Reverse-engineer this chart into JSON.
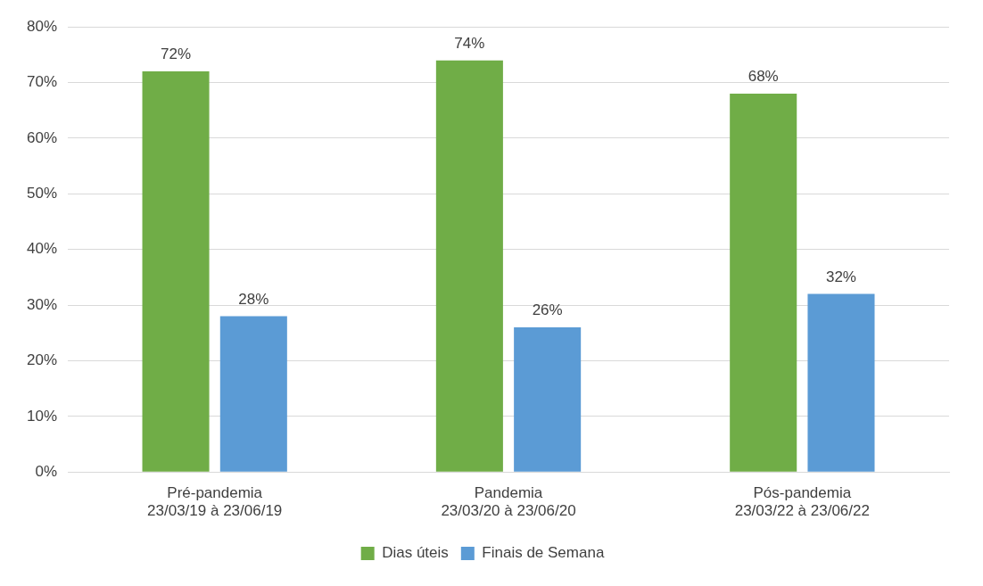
{
  "chart_data": {
    "type": "bar",
    "categories": [
      "Pré-pandemia\n23/03/19 à 23/06/19",
      "Pandemia\n23/03/20 à 23/06/20",
      "Pós-pandemia\n23/03/22 à 23/06/22"
    ],
    "series": [
      {
        "name": "Dias úteis",
        "color": "#70ad47",
        "values": [
          72,
          74,
          68
        ],
        "value_labels": [
          "72%",
          "74%",
          "68%"
        ]
      },
      {
        "name": "Finais de Semana",
        "color": "#5b9bd5",
        "values": [
          28,
          26,
          32
        ],
        "value_labels": [
          "28%",
          "26%",
          "32%"
        ]
      }
    ],
    "ylim": [
      0,
      80
    ],
    "yticks": [
      {
        "value": 0,
        "label": "0%"
      },
      {
        "value": 10,
        "label": "10%"
      },
      {
        "value": 20,
        "label": "20%"
      },
      {
        "value": 30,
        "label": "30%"
      },
      {
        "value": 40,
        "label": "40%"
      },
      {
        "value": 50,
        "label": "50%"
      },
      {
        "value": 60,
        "label": "60%"
      },
      {
        "value": 70,
        "label": "70%"
      },
      {
        "value": 80,
        "label": "80%"
      }
    ],
    "grid": "y",
    "legend": "bottom"
  }
}
